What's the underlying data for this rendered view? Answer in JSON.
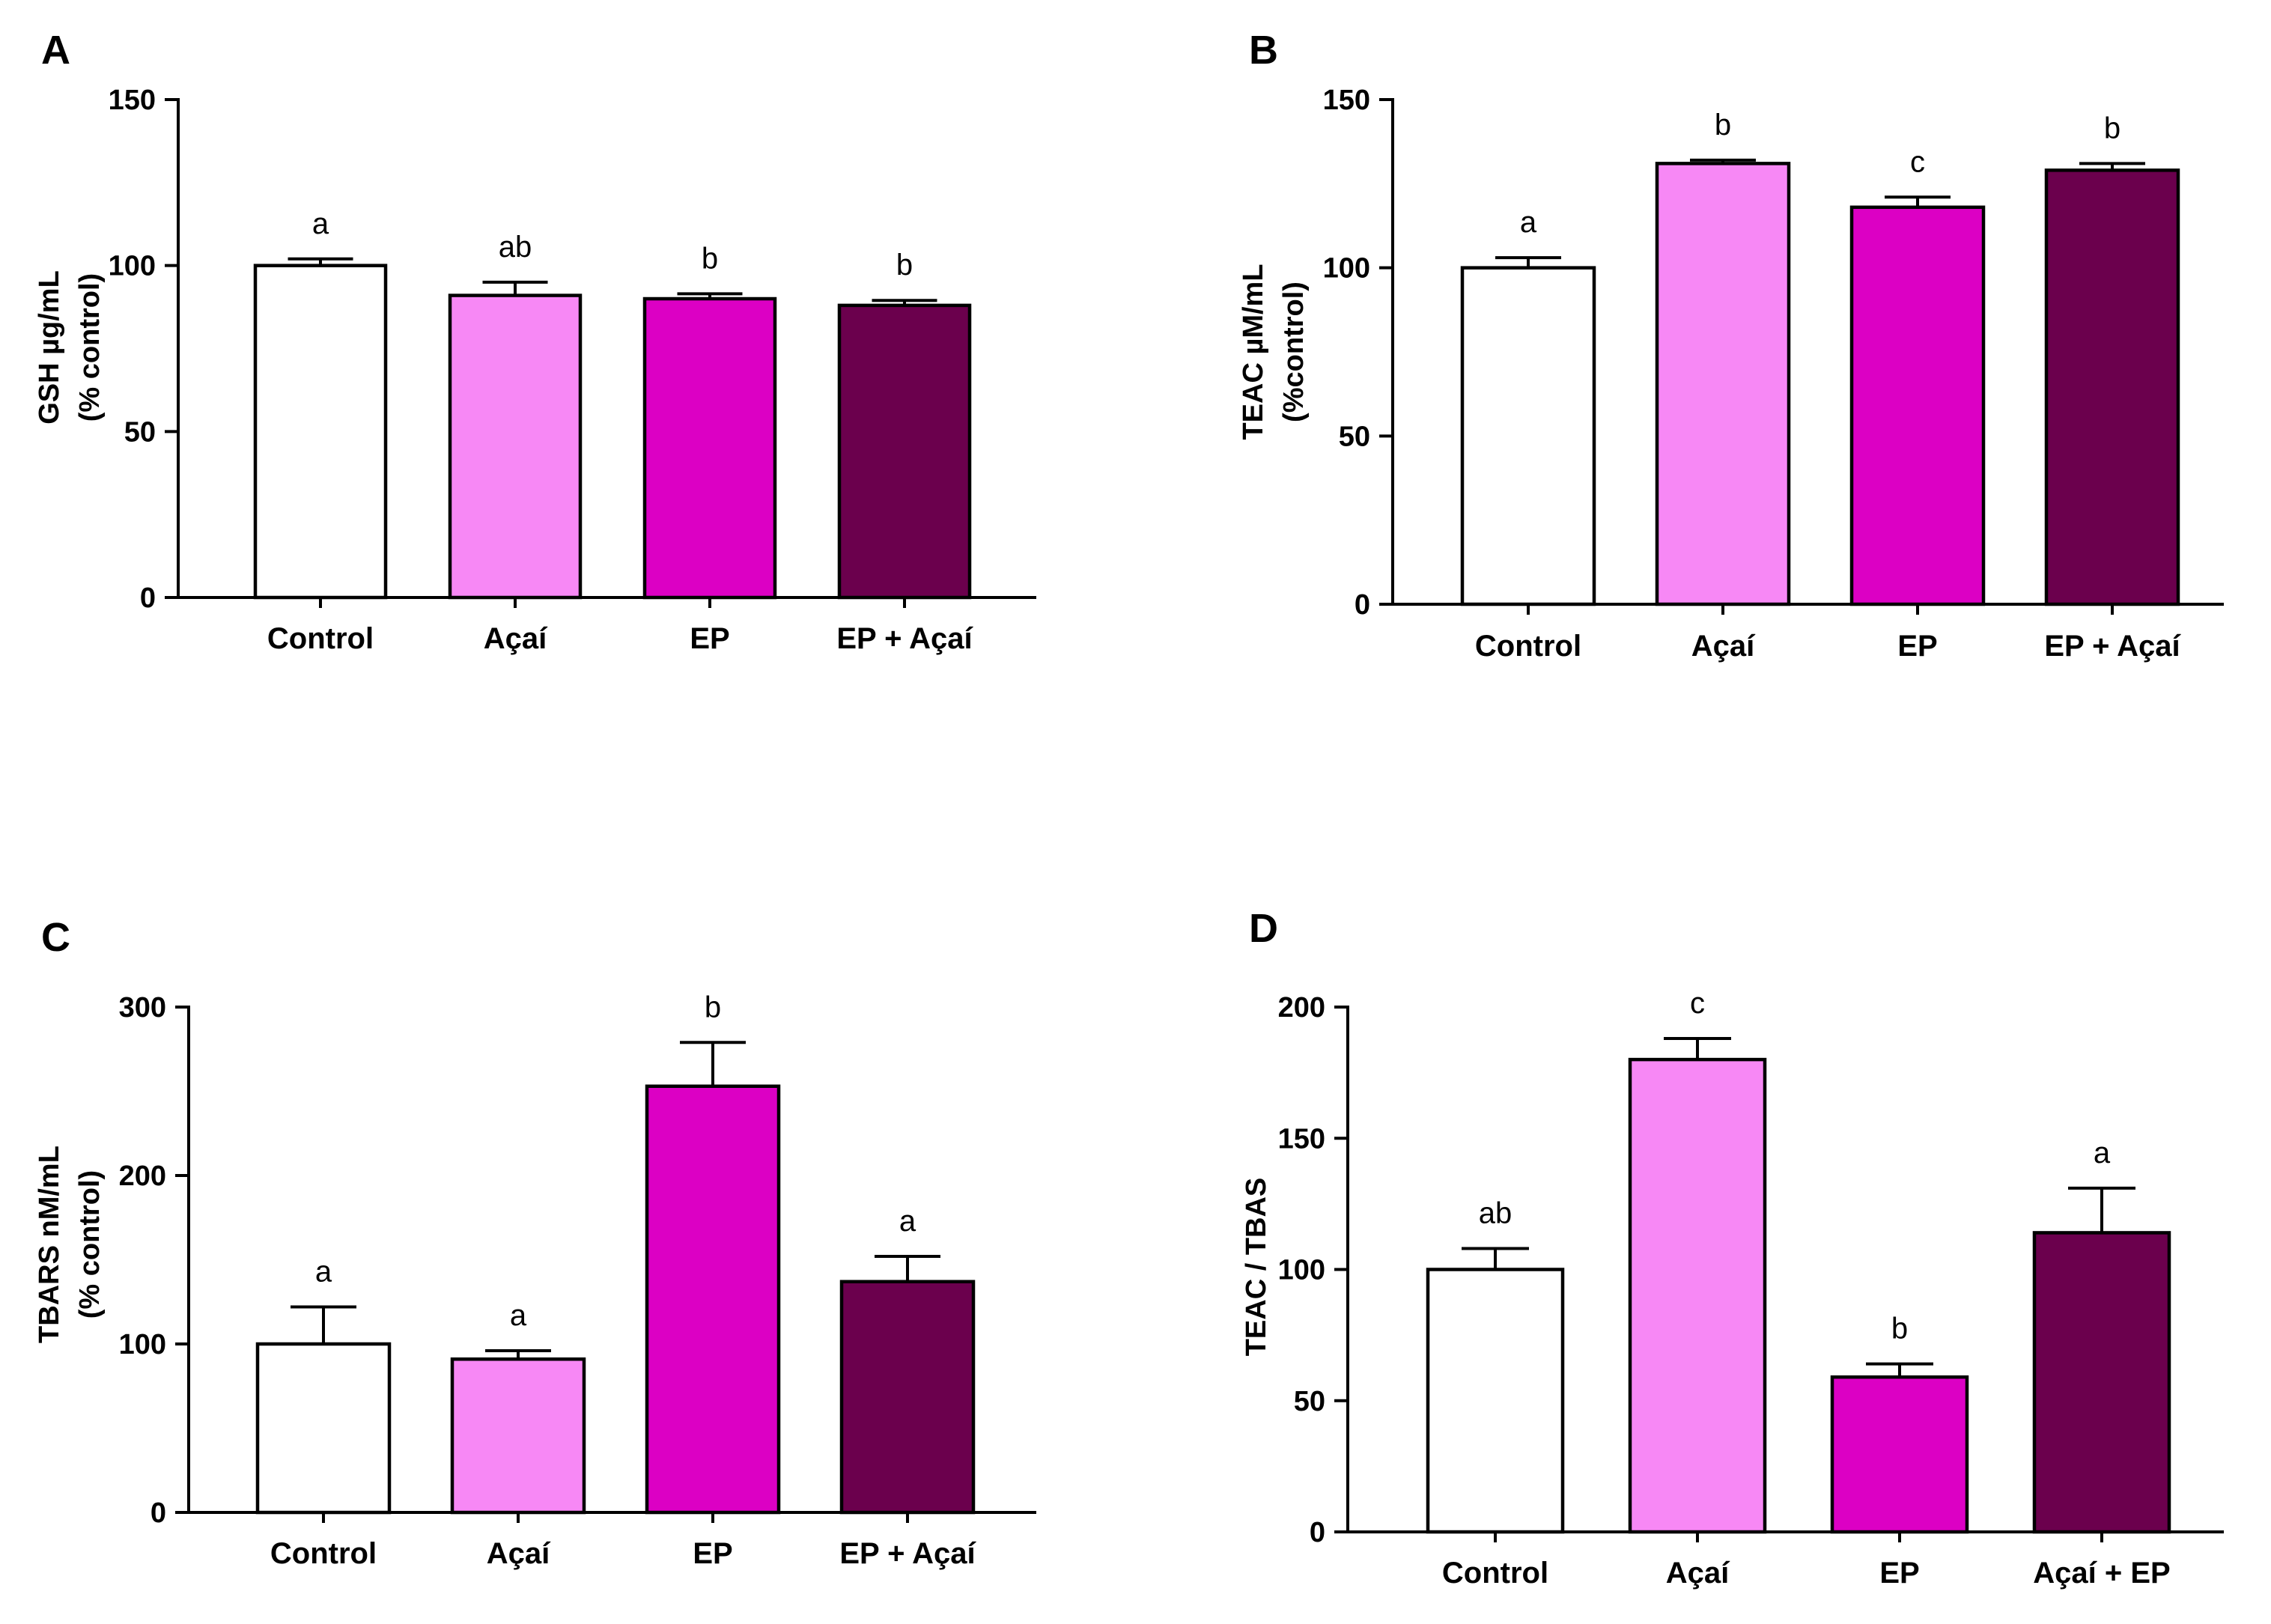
{
  "chart_data": [
    {
      "panel": "A",
      "type": "bar",
      "categories": [
        "Control",
        "Açaí",
        "EP",
        "EP + Açaí"
      ],
      "values": [
        100,
        91,
        90,
        88
      ],
      "errors": [
        2,
        4,
        1.5,
        1.5
      ],
      "significance": [
        "a",
        "ab",
        "b",
        "b"
      ],
      "colors": [
        "#ffffff",
        "#f788f5",
        "#dc00c4",
        "#6b004d"
      ],
      "ylabel_lines": [
        "GSH µg/mL",
        "(% control)"
      ],
      "ylim": [
        0,
        150
      ],
      "yticks": [
        0,
        50,
        100,
        150
      ]
    },
    {
      "panel": "B",
      "type": "bar",
      "categories": [
        "Control",
        "Açaí",
        "EP",
        "EP + Açaí"
      ],
      "values": [
        100,
        131,
        118,
        129
      ],
      "errors": [
        3,
        1,
        3,
        2
      ],
      "significance": [
        "a",
        "b",
        "c",
        "b"
      ],
      "colors": [
        "#ffffff",
        "#f788f5",
        "#dc00c4",
        "#6b004d"
      ],
      "ylabel_lines": [
        "TEAC µM/mL",
        "(%control)"
      ],
      "ylim": [
        0,
        150
      ],
      "yticks": [
        0,
        50,
        100,
        150
      ]
    },
    {
      "panel": "C",
      "type": "bar",
      "categories": [
        "Control",
        "Açaí",
        "EP",
        "EP + Açaí"
      ],
      "values": [
        100,
        91,
        253,
        137
      ],
      "errors": [
        22,
        5,
        26,
        15
      ],
      "significance": [
        "a",
        "a",
        "b",
        "a"
      ],
      "colors": [
        "#ffffff",
        "#f788f5",
        "#dc00c4",
        "#6b004d"
      ],
      "ylabel_lines": [
        "TBARS nM/mL",
        "(% control)"
      ],
      "ylim": [
        0,
        300
      ],
      "yticks": [
        0,
        100,
        200,
        300
      ]
    },
    {
      "panel": "D",
      "type": "bar",
      "categories": [
        "Control",
        "Açaí",
        "EP",
        "Açaí + EP"
      ],
      "values": [
        100,
        180,
        59,
        114
      ],
      "errors": [
        8,
        8,
        5,
        17
      ],
      "significance": [
        "ab",
        "c",
        "b",
        "a"
      ],
      "colors": [
        "#ffffff",
        "#f788f5",
        "#dc00c4",
        "#6b004d"
      ],
      "ylabel_lines": [
        "TEAC / TBAS"
      ],
      "ylim": [
        0,
        200
      ],
      "yticks": [
        0,
        50,
        100,
        150,
        200
      ]
    }
  ]
}
